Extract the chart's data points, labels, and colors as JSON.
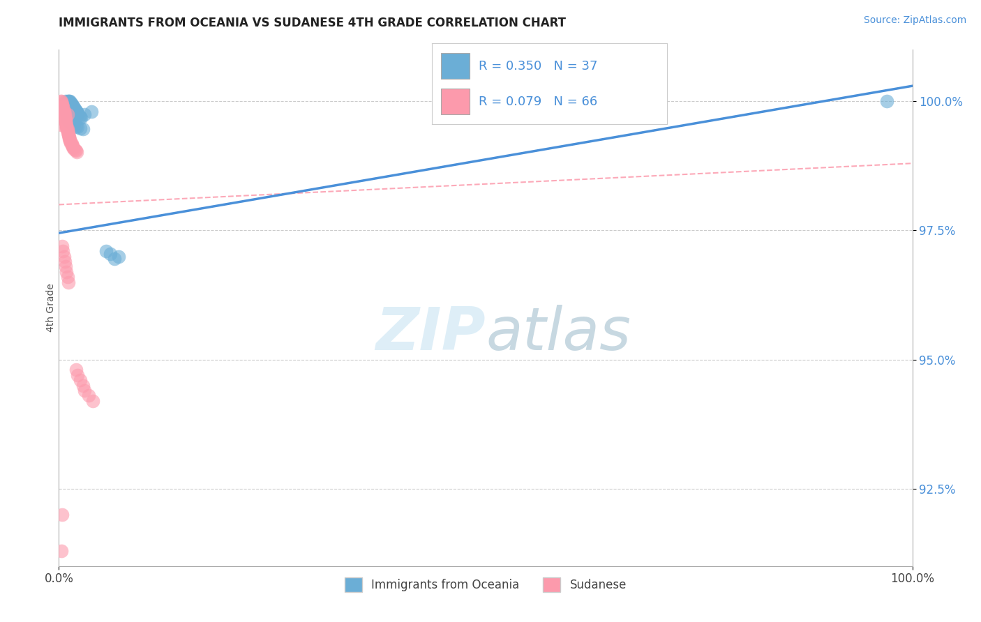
{
  "title": "IMMIGRANTS FROM OCEANIA VS SUDANESE 4TH GRADE CORRELATION CHART",
  "source": "Source: ZipAtlas.com",
  "ylabel": "4th Grade",
  "xlim": [
    0.0,
    1.0
  ],
  "ylim": [
    0.91,
    1.01
  ],
  "yticks": [
    0.925,
    0.95,
    0.975,
    1.0
  ],
  "ytick_labels": [
    "92.5%",
    "95.0%",
    "97.5%",
    "100.0%"
  ],
  "xtick_labels": [
    "0.0%",
    "100.0%"
  ],
  "legend_label1": "Immigrants from Oceania",
  "legend_label2": "Sudanese",
  "R1": 0.35,
  "N1": 37,
  "R2": 0.079,
  "N2": 66,
  "color_blue": "#6baed6",
  "color_pink": "#fc9aac",
  "color_blue_dark": "#4a90c4",
  "background_color": "#ffffff",
  "blue_x": [
    0.005,
    0.007,
    0.007,
    0.008,
    0.01,
    0.011,
    0.012,
    0.013,
    0.014,
    0.015,
    0.016,
    0.017,
    0.018,
    0.019,
    0.02,
    0.021,
    0.022,
    0.023,
    0.024,
    0.025,
    0.026,
    0.01,
    0.012,
    0.014,
    0.016,
    0.018,
    0.02,
    0.022,
    0.025,
    0.028,
    0.03,
    0.055,
    0.06,
    0.07,
    0.038,
    0.065,
    0.97
  ],
  "blue_y": [
    0.9985,
    0.999,
    0.9995,
    1.0,
    1.0,
    1.0,
    1.0,
    1.0,
    0.9998,
    0.9995,
    0.9992,
    0.999,
    0.9988,
    0.9985,
    0.9982,
    0.998,
    0.9978,
    0.9975,
    0.9972,
    0.997,
    0.9968,
    0.9965,
    0.9962,
    0.996,
    0.9958,
    0.9955,
    0.9952,
    0.995,
    0.9948,
    0.9946,
    0.9975,
    0.971,
    0.9705,
    0.97,
    0.998,
    0.9695,
    1.0
  ],
  "pink_x": [
    0.002,
    0.003,
    0.003,
    0.004,
    0.004,
    0.005,
    0.005,
    0.005,
    0.006,
    0.006,
    0.006,
    0.007,
    0.007,
    0.007,
    0.007,
    0.008,
    0.008,
    0.008,
    0.008,
    0.009,
    0.009,
    0.009,
    0.009,
    0.01,
    0.01,
    0.01,
    0.01,
    0.011,
    0.011,
    0.011,
    0.012,
    0.012,
    0.012,
    0.013,
    0.013,
    0.014,
    0.014,
    0.015,
    0.015,
    0.016,
    0.016,
    0.017,
    0.018,
    0.019,
    0.02,
    0.021,
    0.004,
    0.005,
    0.006,
    0.007,
    0.008,
    0.009,
    0.01,
    0.011,
    0.02,
    0.022,
    0.025,
    0.028,
    0.03,
    0.035,
    0.04,
    0.01,
    0.008,
    0.003,
    0.004,
    0.003
  ],
  "pink_y": [
    1.0,
    1.0,
    0.9998,
    0.9995,
    0.9993,
    0.999,
    0.9988,
    0.9985,
    0.9982,
    0.998,
    0.9978,
    0.9975,
    0.9972,
    0.997,
    0.9968,
    0.9965,
    0.9962,
    0.996,
    0.9958,
    0.9955,
    0.9952,
    0.995,
    0.9948,
    0.9946,
    0.9944,
    0.9942,
    0.994,
    0.9938,
    0.9936,
    0.9934,
    0.9932,
    0.993,
    0.9928,
    0.9926,
    0.9924,
    0.9922,
    0.992,
    0.9918,
    0.9916,
    0.9914,
    0.9912,
    0.991,
    0.9908,
    0.9906,
    0.9904,
    0.9902,
    0.972,
    0.971,
    0.97,
    0.969,
    0.968,
    0.967,
    0.966,
    0.965,
    0.948,
    0.947,
    0.946,
    0.945,
    0.944,
    0.943,
    0.942,
    0.9975,
    0.9965,
    0.9955,
    0.92,
    0.913
  ]
}
